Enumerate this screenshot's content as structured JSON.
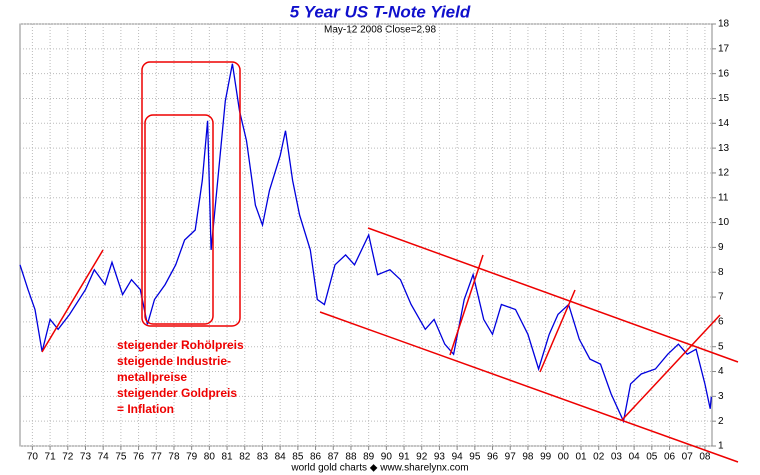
{
  "chart_data": {
    "type": "line",
    "title": "5 Year US T-Note Yield",
    "subtitle": "May-12 2008  Close=2.98",
    "footer": "world gold charts ◆ www.sharelynx.com",
    "annotations": [
      "steigender Rohölpreis",
      "steigende Industrie-",
      "metallpreise",
      "steigender Goldpreis",
      "= Inflation"
    ],
    "x": [
      1969.3,
      1969.75,
      1970.15,
      1970.55,
      1971.0,
      1971.45,
      1972.1,
      1973.0,
      1973.5,
      1974.1,
      1974.5,
      1975.1,
      1975.6,
      1976.1,
      1976.5,
      1976.9,
      1977.5,
      1978.1,
      1978.6,
      1979.2,
      1979.6,
      1979.9,
      1980.1,
      1980.5,
      1980.9,
      1981.3,
      1981.7,
      1982.1,
      1982.6,
      1983.0,
      1983.4,
      1984.0,
      1984.3,
      1984.7,
      1985.1,
      1985.7,
      1986.1,
      1986.5,
      1987.1,
      1987.7,
      1988.2,
      1989.0,
      1989.5,
      1990.2,
      1990.8,
      1991.4,
      1992.2,
      1992.7,
      1993.3,
      1993.8,
      1994.4,
      1994.9,
      1995.5,
      1996.0,
      1996.5,
      1997.3,
      1998.0,
      1998.6,
      1999.2,
      1999.7,
      2000.3,
      2000.9,
      2001.5,
      2002.1,
      2002.7,
      2003.4,
      2003.8,
      2004.4,
      2005.2,
      2005.9,
      2006.5,
      2007.0,
      2007.5,
      2008.0,
      2008.3,
      2008.36
    ],
    "values": [
      8.3,
      7.3,
      6.5,
      4.8,
      6.1,
      5.7,
      6.3,
      7.3,
      8.1,
      7.5,
      8.4,
      7.1,
      7.7,
      7.3,
      5.9,
      6.9,
      7.5,
      8.3,
      9.3,
      9.7,
      11.7,
      14.1,
      8.9,
      11.9,
      14.9,
      16.4,
      14.5,
      13.3,
      10.7,
      9.9,
      11.3,
      12.7,
      13.7,
      11.7,
      10.3,
      8.9,
      6.9,
      6.7,
      8.3,
      8.7,
      8.3,
      9.5,
      7.9,
      8.1,
      7.7,
      6.7,
      5.7,
      6.1,
      5.1,
      4.7,
      6.9,
      7.9,
      6.1,
      5.5,
      6.7,
      6.5,
      5.5,
      4.1,
      5.5,
      6.3,
      6.7,
      5.3,
      4.5,
      4.3,
      3.1,
      2.0,
      3.5,
      3.9,
      4.1,
      4.7,
      5.1,
      4.7,
      4.9,
      3.5,
      2.5,
      2.98
    ],
    "color": "#0000dd",
    "xlim": [
      1969.3,
      2008.4
    ],
    "ylim": [
      1,
      18
    ],
    "yticks": [
      1,
      2,
      3,
      4,
      5,
      6,
      7,
      8,
      9,
      10,
      11,
      12,
      13,
      14,
      15,
      16,
      17,
      18
    ],
    "xticks": [
      {
        "value": 1970,
        "label": "70"
      },
      {
        "value": 1971,
        "label": "71"
      },
      {
        "value": 1972,
        "label": "72"
      },
      {
        "value": 1973,
        "label": "73"
      },
      {
        "value": 1974,
        "label": "74"
      },
      {
        "value": 1975,
        "label": "75"
      },
      {
        "value": 1976,
        "label": "76"
      },
      {
        "value": 1977,
        "label": "77"
      },
      {
        "value": 1978,
        "label": "78"
      },
      {
        "value": 1979,
        "label": "79"
      },
      {
        "value": 1980,
        "label": "80"
      },
      {
        "value": 1981,
        "label": "81"
      },
      {
        "value": 1982,
        "label": "82"
      },
      {
        "value": 1983,
        "label": "83"
      },
      {
        "value": 1984,
        "label": "84"
      },
      {
        "value": 1985,
        "label": "85"
      },
      {
        "value": 1986,
        "label": "86"
      },
      {
        "value": 1987,
        "label": "87"
      },
      {
        "value": 1988,
        "label": "88"
      },
      {
        "value": 1989,
        "label": "89"
      },
      {
        "value": 1990,
        "label": "90"
      },
      {
        "value": 1991,
        "label": "91"
      },
      {
        "value": 1992,
        "label": "92"
      },
      {
        "value": 1993,
        "label": "93"
      },
      {
        "value": 1994,
        "label": "94"
      },
      {
        "value": 1995,
        "label": "95"
      },
      {
        "value": 1996,
        "label": "96"
      },
      {
        "value": 1997,
        "label": "97"
      },
      {
        "value": 1998,
        "label": "98"
      },
      {
        "value": 1999,
        "label": "99"
      },
      {
        "value": 2000,
        "label": "00"
      },
      {
        "value": 2001,
        "label": "01"
      },
      {
        "value": 2002,
        "label": "02"
      },
      {
        "value": 2003,
        "label": "03"
      },
      {
        "value": 2004,
        "label": "04"
      },
      {
        "value": 2005,
        "label": "05"
      },
      {
        "value": 2006,
        "label": "06"
      },
      {
        "value": 2007,
        "label": "07"
      },
      {
        "value": 2008,
        "label": "08"
      }
    ],
    "grid": true
  }
}
